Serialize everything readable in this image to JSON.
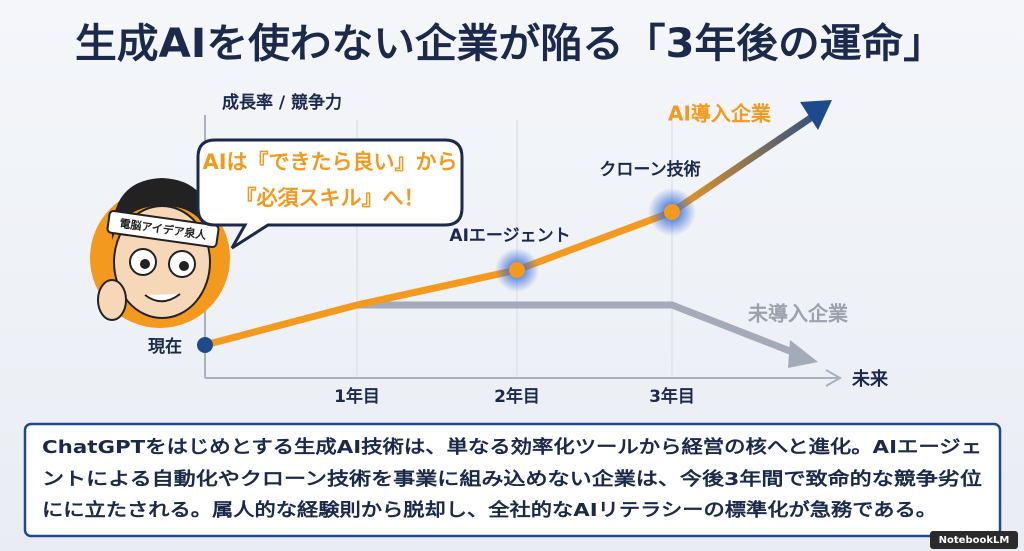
{
  "header": {
    "title": "生成AIを使わない企業が陥る「3年後の運命」"
  },
  "graph": {
    "y_axis_label": "成長率 / 競争力",
    "x_axis_label": "未来",
    "start_label": "現在",
    "x_labels": [
      "1年目",
      "2年目",
      "3年目"
    ],
    "adopter_label": "AI導入企業",
    "non_adopter_label": "未導入企業",
    "milestones": [
      "AIエージェント",
      "クローン技術"
    ]
  },
  "speech_bubble": {
    "lines": [
      "AIは『できたら良い』から",
      "『必須スキル』へ！"
    ]
  },
  "character": {
    "headband": "電脳アイデア泉人"
  },
  "summary": {
    "lines": [
      "ChatGPTをはじめとする生成AI技術は、単なる効率化ツールから経営の核へと進化。AIエージェ",
      "ントによる自動化やクローン技術を事業に組み込めない企業は、今後3年間で致命的な競争劣位",
      "にに立たされる。属人的な経験則から脱却し、全社的なAIリテラシーの標準化が急務である。"
    ]
  },
  "badge": "NotebookLM"
}
